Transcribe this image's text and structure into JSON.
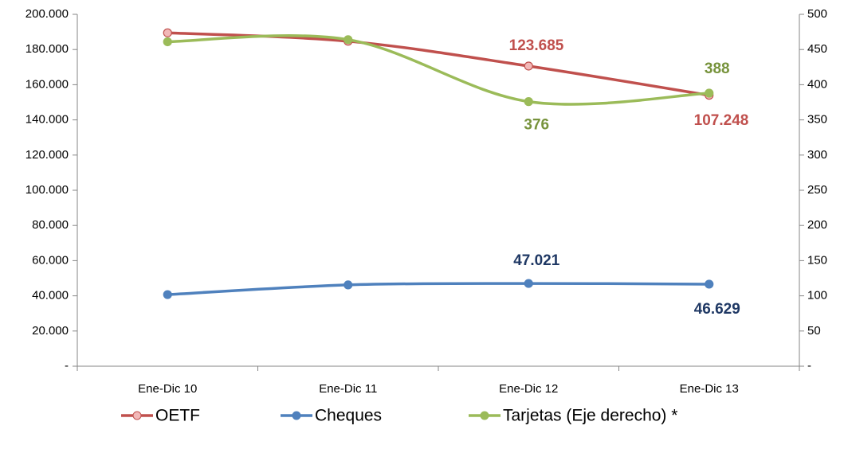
{
  "chart_data": {
    "type": "line",
    "categories": [
      "Ene-Dic 10",
      "Ene-Dic 11",
      "Ene-Dic 12",
      "Ene-Dic 13"
    ],
    "series": [
      {
        "name": "OETF",
        "color": "#c0504d",
        "values": [
          189500,
          184700,
          170600,
          154000
        ]
      },
      {
        "name": "Cheques",
        "color": "#4f81bd",
        "values": [
          40700,
          46200,
          47021,
          46629
        ],
        "value_labels": [
          null,
          null,
          "47.021",
          "46.629"
        ]
      },
      {
        "name": "Tarjetas (Eje derecho) *",
        "color": "#9bbb59",
        "axis": "y2",
        "values": [
          461,
          464,
          376,
          388
        ],
        "value_labels": [
          null,
          null,
          "376",
          "388"
        ]
      }
    ],
    "annotations": [
      "123.685",
      "107.248"
    ],
    "ylim": [
      0,
      200000
    ],
    "yticks": [
      {
        "value": 0,
        "label": "-"
      },
      {
        "value": 20000,
        "label": "20.000"
      },
      {
        "value": 40000,
        "label": "40.000"
      },
      {
        "value": 60000,
        "label": "60.000"
      },
      {
        "value": 80000,
        "label": "80.000"
      },
      {
        "value": 100000,
        "label": "100.000"
      },
      {
        "value": 120000,
        "label": "120.000"
      },
      {
        "value": 140000,
        "label": "140.000"
      },
      {
        "value": 160000,
        "label": "160.000"
      },
      {
        "value": 180000,
        "label": "180.000"
      },
      {
        "value": 200000,
        "label": "200.000"
      }
    ],
    "y2lim": [
      0,
      500
    ],
    "y2ticks": [
      {
        "value": 0,
        "label": "-"
      },
      50,
      100,
      150,
      200,
      250,
      300,
      350,
      400,
      450,
      500
    ],
    "legend": "bottom"
  }
}
